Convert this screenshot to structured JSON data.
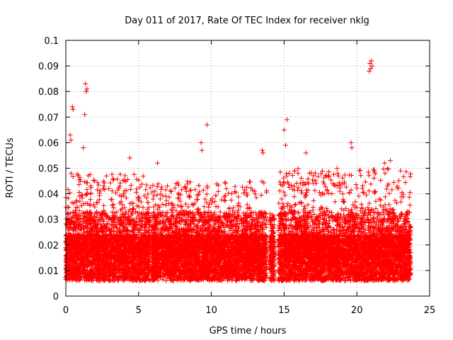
{
  "chart_data": {
    "type": "scatter",
    "title": "Day 011 of 2017, Rate Of TEC Index for receiver nklg",
    "xlabel": "GPS time / hours",
    "ylabel": "ROTI / TECUs",
    "xlim": [
      0,
      25
    ],
    "ylim": [
      0,
      0.1
    ],
    "xticks": [
      "0",
      "5",
      "10",
      "15",
      "20",
      "25"
    ],
    "yticks": [
      "0",
      "0.01",
      "0.02",
      "0.03",
      "0.04",
      "0.05",
      "0.06",
      "0.07",
      "0.08",
      "0.09",
      "0.1"
    ],
    "grid": true,
    "marker": "+",
    "color": "#ff0000",
    "data_segments": [
      {
        "x_start": 0.0,
        "x_end": 5.8,
        "y_low": 0.004,
        "y_high": 0.048
      },
      {
        "x_start": 5.9,
        "x_end": 13.8,
        "y_low": 0.003,
        "y_high": 0.045
      },
      {
        "x_start": 14.0,
        "x_end": 14.35,
        "y_low": 0.005,
        "y_high": 0.033
      },
      {
        "x_start": 14.6,
        "x_end": 23.7,
        "y_low": 0.002,
        "y_high": 0.05
      }
    ],
    "outliers": [
      {
        "x": 0.3,
        "y": 0.063
      },
      {
        "x": 0.35,
        "y": 0.061
      },
      {
        "x": 0.45,
        "y": 0.074
      },
      {
        "x": 0.5,
        "y": 0.073
      },
      {
        "x": 1.2,
        "y": 0.058
      },
      {
        "x": 1.35,
        "y": 0.083
      },
      {
        "x": 1.4,
        "y": 0.08
      },
      {
        "x": 1.45,
        "y": 0.081
      },
      {
        "x": 1.3,
        "y": 0.071
      },
      {
        "x": 4.4,
        "y": 0.054
      },
      {
        "x": 6.3,
        "y": 0.052
      },
      {
        "x": 9.3,
        "y": 0.06
      },
      {
        "x": 9.35,
        "y": 0.057
      },
      {
        "x": 9.7,
        "y": 0.067
      },
      {
        "x": 13.5,
        "y": 0.057
      },
      {
        "x": 13.55,
        "y": 0.056
      },
      {
        "x": 15.0,
        "y": 0.065
      },
      {
        "x": 15.2,
        "y": 0.069
      },
      {
        "x": 15.1,
        "y": 0.059
      },
      {
        "x": 16.5,
        "y": 0.056
      },
      {
        "x": 19.6,
        "y": 0.06
      },
      {
        "x": 19.65,
        "y": 0.058
      },
      {
        "x": 20.9,
        "y": 0.091
      },
      {
        "x": 20.95,
        "y": 0.089
      },
      {
        "x": 21.0,
        "y": 0.092
      },
      {
        "x": 20.85,
        "y": 0.088
      },
      {
        "x": 21.05,
        "y": 0.09
      },
      {
        "x": 22.3,
        "y": 0.053
      },
      {
        "x": 21.9,
        "y": 0.052
      }
    ]
  }
}
